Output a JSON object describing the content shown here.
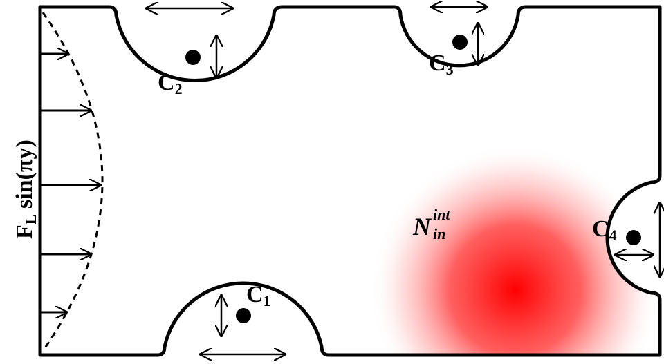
{
  "labels": {
    "force": {
      "main": "F",
      "sub": "L",
      "rest": " sin(πy)"
    },
    "c1": {
      "main": "C",
      "sub": "1"
    },
    "c2": {
      "main": "C",
      "sub": "2"
    },
    "c3": {
      "main": "C",
      "sub": "3"
    },
    "c4": {
      "main": "C",
      "sub": "4"
    },
    "source": {
      "main": "N",
      "sup": "int",
      "sub": "in"
    }
  },
  "colors": {
    "outline": "#000000",
    "source_center": "#ff0000",
    "background": "#ffffff"
  }
}
